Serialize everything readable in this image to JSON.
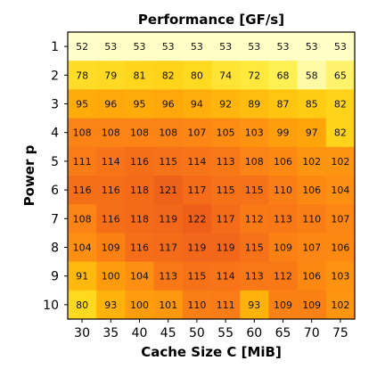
{
  "chart_data": {
    "type": "heatmap",
    "title": "Performance [GF/s]",
    "xlabel": "Cache Size C [MiB]",
    "ylabel": "Power p",
    "x_categories": [
      "30",
      "35",
      "40",
      "45",
      "50",
      "55",
      "60",
      "65",
      "70",
      "75"
    ],
    "y_categories": [
      "1",
      "2",
      "3",
      "4",
      "5",
      "6",
      "7",
      "8",
      "9",
      "10"
    ],
    "values": [
      [
        52,
        53,
        53,
        53,
        53,
        53,
        53,
        53,
        53,
        53
      ],
      [
        78,
        79,
        81,
        82,
        80,
        74,
        72,
        68,
        58,
        65
      ],
      [
        95,
        96,
        95,
        96,
        94,
        92,
        89,
        87,
        85,
        82
      ],
      [
        108,
        108,
        108,
        108,
        107,
        105,
        103,
        99,
        97,
        82
      ],
      [
        111,
        114,
        116,
        115,
        114,
        113,
        108,
        106,
        102,
        102
      ],
      [
        116,
        116,
        118,
        121,
        117,
        115,
        115,
        110,
        106,
        104
      ],
      [
        108,
        116,
        118,
        119,
        122,
        117,
        112,
        113,
        110,
        107
      ],
      [
        104,
        109,
        116,
        117,
        119,
        119,
        115,
        109,
        107,
        106
      ],
      [
        91,
        100,
        104,
        113,
        115,
        114,
        113,
        112,
        106,
        103
      ],
      [
        80,
        93,
        100,
        101,
        110,
        111,
        93,
        109,
        109,
        102
      ]
    ],
    "colormap": "YlOrRd",
    "value_range": [
      52,
      122
    ],
    "colorbar": false,
    "grid": false
  }
}
